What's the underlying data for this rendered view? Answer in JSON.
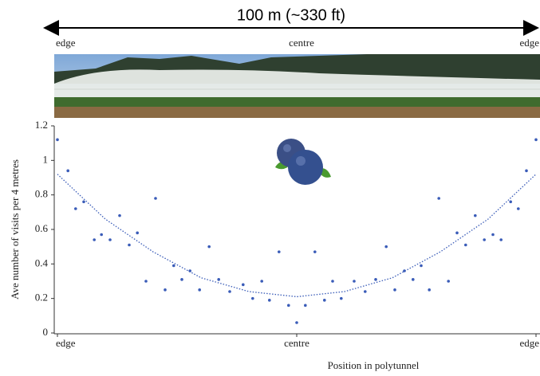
{
  "scale_bar": {
    "label": "100 m (~330 ft)",
    "positions": [
      "edge",
      "centre",
      "edge"
    ]
  },
  "chart_data": {
    "type": "scatter",
    "x_label": "Position in polytunnel",
    "y_label": "Ave number of visits per 4 metres",
    "x": [
      0,
      2.2,
      3.8,
      5.5,
      7.7,
      9.2,
      11,
      13,
      15,
      16.7,
      18.5,
      20.5,
      22.5,
      24.3,
      26,
      27.7,
      29.7,
      31.7,
      33.7,
      36,
      38.8,
      40.8,
      42.7,
      44.3,
      46.3,
      48.3,
      50,
      51.8,
      53.8,
      55.8,
      57.5,
      59.3,
      62,
      64.3,
      66.5,
      68.7,
      70.5,
      72.5,
      74.3,
      76,
      77.7,
      79.7,
      81.7,
      83.5,
      85.3,
      87.3,
      89.2,
      91,
      92.7,
      94.7,
      96.3,
      98,
      100
    ],
    "values": [
      1.12,
      0.94,
      0.72,
      0.76,
      0.54,
      0.57,
      0.54,
      0.68,
      0.51,
      0.58,
      0.3,
      0.78,
      0.25,
      0.39,
      0.31,
      0.36,
      0.25,
      0.5,
      0.31,
      0.24,
      0.28,
      0.2,
      0.3,
      0.19,
      0.47,
      0.16,
      0.06,
      0.16,
      0.47,
      0.19,
      0.3,
      0.2,
      0.3,
      0.24,
      0.31,
      0.5,
      0.25,
      0.36,
      0.31,
      0.39,
      0.25,
      0.78,
      0.3,
      0.58,
      0.51,
      0.68,
      0.54,
      0.57,
      0.54,
      0.76,
      0.72,
      0.94,
      1.12
    ],
    "color": "#3a5cb8",
    "trend": {
      "x": [
        0,
        10,
        20,
        30,
        40,
        50,
        60,
        70,
        80,
        90,
        100
      ],
      "values": [
        0.92,
        0.66,
        0.47,
        0.32,
        0.24,
        0.21,
        0.24,
        0.32,
        0.47,
        0.66,
        0.92
      ],
      "color": "#3a5cb8"
    },
    "xlim": [
      0,
      100
    ],
    "xticks": [
      {
        "value": 0,
        "label": "edge"
      },
      {
        "value": 50,
        "label": "centre"
      },
      {
        "value": 100,
        "label": "edge"
      }
    ],
    "ylim": [
      0,
      1.2
    ],
    "yticks": [
      0,
      0.2,
      0.4,
      0.6,
      0.8,
      1,
      1.2
    ]
  }
}
